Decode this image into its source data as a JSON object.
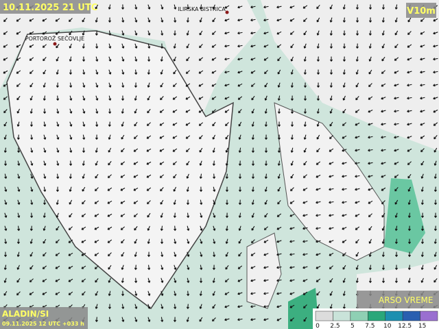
{
  "header": {
    "valid_time": "10.11.2025 21 UTC",
    "field": "V10m"
  },
  "places": [
    {
      "label": "ILIRSKA BISTRICA"
    },
    {
      "label": "PORTOROŽ SEČOVLJE"
    }
  ],
  "footer": {
    "model": "ALADIN/SI",
    "run": "09.11.2025 12 UTC +033 h",
    "brand": "ARSO VREME"
  },
  "legend": {
    "labels": [
      "0",
      "2.5",
      "5",
      "7.5",
      "10",
      "12.5",
      "15"
    ],
    "colors": [
      "#dcdcdc",
      "#c9e3d9",
      "#8fd0b4",
      "#2aa77a",
      "#1d8fb0",
      "#2a5fb0",
      "#9a6fd0"
    ]
  }
}
